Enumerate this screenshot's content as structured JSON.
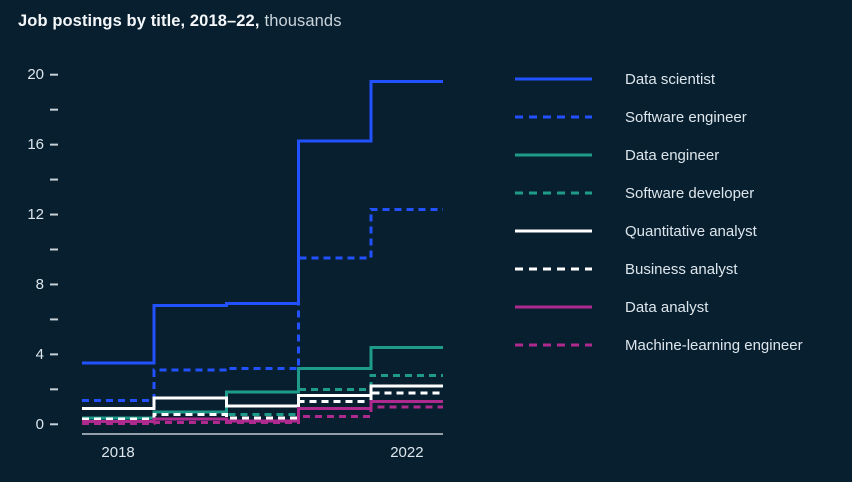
{
  "title": {
    "bold": "Job postings by title, 2018–22,",
    "light": "thousands"
  },
  "colors": {
    "background": "#081f2f",
    "blue": "#2251ff",
    "teal": "#1e9b8b",
    "white": "#ffffff",
    "magenta": "#ae2a8f",
    "axis": "#e6edf2",
    "tick": "#c6d1d8",
    "text": "#dde6ec"
  },
  "chart_data": {
    "type": "line",
    "subtype": "step",
    "title": "Job postings by title, 2018–22",
    "unit": "thousands",
    "x": [
      2018,
      2019,
      2020,
      2021,
      2022
    ],
    "x_tick_labels": [
      "2018",
      "2022"
    ],
    "ylim": [
      0,
      20
    ],
    "y_major_ticks": [
      0,
      4,
      8,
      12,
      16,
      20
    ],
    "y_minor_ticks": [
      2,
      6,
      10,
      14,
      18
    ],
    "grid": false,
    "legend_position": "right",
    "series": [
      {
        "name": "Data scientist",
        "color": "blue",
        "dash": false,
        "values": [
          3.5,
          6.8,
          6.9,
          16.2,
          19.6
        ]
      },
      {
        "name": "Software engineer",
        "color": "blue",
        "dash": true,
        "values": [
          1.35,
          3.1,
          3.2,
          9.5,
          12.3
        ]
      },
      {
        "name": "Data engineer",
        "color": "teal",
        "dash": false,
        "values": [
          0.35,
          0.7,
          1.85,
          3.2,
          4.4
        ]
      },
      {
        "name": "Software developer",
        "color": "teal",
        "dash": true,
        "values": [
          0.3,
          0.7,
          0.55,
          2.0,
          2.8
        ]
      },
      {
        "name": "Quantitative analyst",
        "color": "white",
        "dash": false,
        "values": [
          0.9,
          1.5,
          1.05,
          1.65,
          2.2
        ]
      },
      {
        "name": "Business analyst",
        "color": "white",
        "dash": true,
        "values": [
          0.3,
          0.55,
          0.35,
          1.3,
          1.8
        ]
      },
      {
        "name": "Data analyst",
        "color": "magenta",
        "dash": false,
        "values": [
          0.15,
          0.3,
          0.2,
          0.9,
          1.3
        ]
      },
      {
        "name": "Machine-learning engineer",
        "color": "magenta",
        "dash": true,
        "values": [
          0.05,
          0.1,
          0.1,
          0.45,
          1.0
        ]
      }
    ]
  }
}
